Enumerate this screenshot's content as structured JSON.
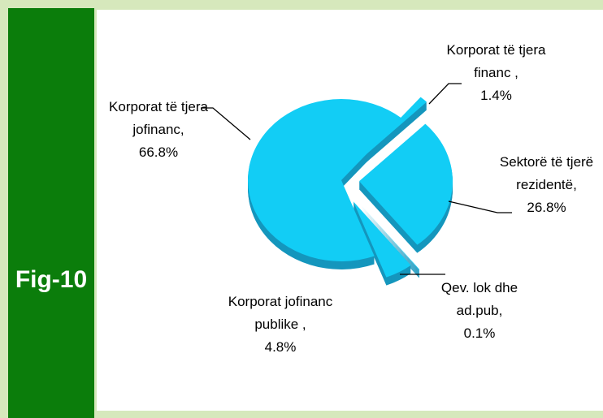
{
  "fig_label": "Fig-10",
  "chart_data": {
    "type": "pie",
    "categories": [
      "Korporat të tjera financ ,",
      "Sektorë të tjerë rezidentë,",
      "Qev. lok dhe ad.pub,",
      "Korporat jofinanc publike ,",
      "Korporat të tjera jofinanc,"
    ],
    "values": [
      1.4,
      26.8,
      0.1,
      4.8,
      66.8
    ],
    "value_labels": [
      "1.4%",
      "26.8%",
      "0.1%",
      "4.8%",
      "66.8%"
    ],
    "color": "#12cdf5"
  }
}
